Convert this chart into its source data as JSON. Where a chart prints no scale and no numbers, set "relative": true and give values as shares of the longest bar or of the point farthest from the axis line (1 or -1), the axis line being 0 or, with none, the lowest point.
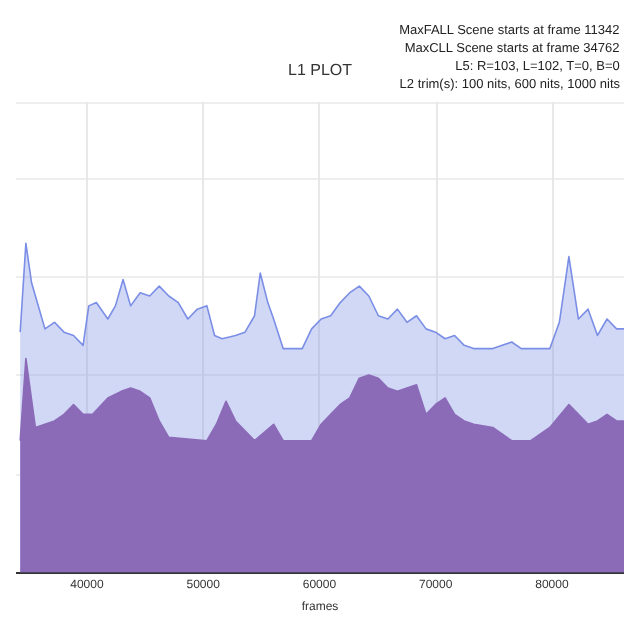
{
  "chart_data": {
    "type": "area",
    "title": "L1 PLOT",
    "xlabel": "frames",
    "annotations": [
      "MaxFALL Scene starts at frame 11342",
      "MaxCLL Scene starts at frame 34762",
      "L5: R=103, L=102, T=0, B=0",
      "L2 trim(s): 100 nits, 600 nits, 1000 nits"
    ],
    "relative": true,
    "grid": true,
    "xlim": [
      33900,
      86200
    ],
    "xticks": [
      40000,
      50000,
      60000,
      70000,
      80000
    ],
    "series": [
      {
        "color": "#7b8ee6",
        "x": [
          34260,
          34750,
          35240,
          35900,
          36390,
          37210,
          38030,
          38850,
          39670,
          40160,
          40810,
          41800,
          42450,
          43110,
          43760,
          44580,
          45400,
          46220,
          47040,
          47860,
          48680,
          49500,
          50320,
          50980,
          51630,
          52780,
          53600,
          54420,
          54910,
          55560,
          56060,
          56880,
          58520,
          59330,
          60150,
          60970,
          61790,
          62610,
          63430,
          64250,
          65070,
          65890,
          66710,
          67530,
          68350,
          69170,
          69990,
          70810,
          71630,
          72450,
          73270,
          74910,
          76540,
          77360,
          79820,
          80640,
          81460,
          82280,
          83110,
          83920,
          84740,
          85560,
          86200
        ],
        "values": [
          0.73,
          1.0,
          0.88,
          0.8,
          0.74,
          0.76,
          0.73,
          0.72,
          0.69,
          0.81,
          0.82,
          0.77,
          0.81,
          0.89,
          0.81,
          0.85,
          0.84,
          0.87,
          0.84,
          0.82,
          0.77,
          0.8,
          0.81,
          0.72,
          0.71,
          0.72,
          0.73,
          0.78,
          0.91,
          0.82,
          0.77,
          0.68,
          0.68,
          0.74,
          0.77,
          0.78,
          0.82,
          0.85,
          0.87,
          0.84,
          0.78,
          0.77,
          0.8,
          0.76,
          0.78,
          0.74,
          0.73,
          0.71,
          0.72,
          0.69,
          0.68,
          0.68,
          0.7,
          0.68,
          0.68,
          0.76,
          0.96,
          0.77,
          0.8,
          0.72,
          0.77,
          0.74,
          0.74
        ]
      },
      {
        "color": "#8b6bb8",
        "x": [
          34260,
          34750,
          35570,
          36390,
          37210,
          38030,
          38850,
          39670,
          40490,
          41800,
          42950,
          43760,
          44580,
          45400,
          46220,
          47040,
          50320,
          51140,
          51960,
          52780,
          53600,
          54420,
          56060,
          56880,
          59330,
          60150,
          60970,
          61790,
          62610,
          63430,
          64250,
          65070,
          65890,
          66710,
          67530,
          68350,
          69170,
          69990,
          70810,
          71630,
          72450,
          73270,
          74910,
          76540,
          78180,
          79820,
          81460,
          82280,
          83110,
          83920,
          84740,
          85560,
          86200
        ],
        "values": [
          0.4,
          0.65,
          0.44,
          0.45,
          0.46,
          0.48,
          0.51,
          0.48,
          0.48,
          0.53,
          0.55,
          0.56,
          0.55,
          0.53,
          0.46,
          0.41,
          0.4,
          0.45,
          0.52,
          0.46,
          0.43,
          0.4,
          0.45,
          0.4,
          0.4,
          0.45,
          0.48,
          0.51,
          0.53,
          0.59,
          0.6,
          0.59,
          0.56,
          0.55,
          0.56,
          0.57,
          0.48,
          0.51,
          0.53,
          0.48,
          0.46,
          0.45,
          0.44,
          0.4,
          0.4,
          0.44,
          0.51,
          0.48,
          0.45,
          0.46,
          0.48,
          0.46,
          0.46
        ]
      }
    ]
  }
}
